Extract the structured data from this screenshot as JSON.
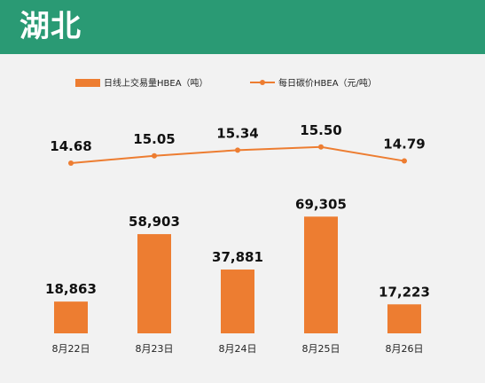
{
  "header": {
    "title": "湖北"
  },
  "colors": {
    "header_bg": "#2a9a74",
    "bar": "#ed7d31",
    "line": "#ed7d31",
    "background": "#f2f2f2"
  },
  "chart_data": {
    "type": "bar",
    "categories": [
      "8月22日",
      "8月23日",
      "8月24日",
      "8月25日",
      "8月26日"
    ],
    "series": [
      {
        "name": "日线上交易量HBEA（吨）",
        "type": "bar",
        "values": [
          18863,
          58903,
          37881,
          69305,
          17223
        ],
        "labels": [
          "18,863",
          "58,903",
          "37,881",
          "69,305",
          "17,223"
        ]
      },
      {
        "name": "每日碳价HBEA（元/吨）",
        "type": "line",
        "values": [
          14.68,
          15.05,
          15.34,
          15.5,
          14.79
        ],
        "labels": [
          "14.68",
          "15.05",
          "15.34",
          "15.50",
          "14.79"
        ]
      }
    ],
    "legend": {
      "position": "top"
    },
    "grid": false
  }
}
